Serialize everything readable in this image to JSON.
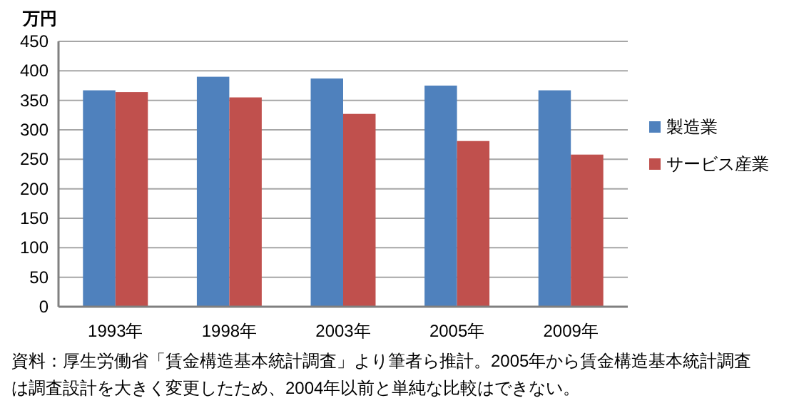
{
  "chart_data": {
    "type": "bar",
    "ylabel": "万円",
    "categories": [
      "1993年",
      "1998年",
      "2003年",
      "2005年",
      "2009年"
    ],
    "series": [
      {
        "name": "製造業",
        "color": "#4f81bd",
        "values": [
          367,
          390,
          387,
          375,
          367
        ]
      },
      {
        "name": "サービス産業",
        "color": "#c0504d",
        "values": [
          364,
          355,
          327,
          281,
          258
        ]
      }
    ],
    "ylim": [
      0,
      450
    ],
    "yticks": [
      0,
      50,
      100,
      150,
      200,
      250,
      300,
      350,
      400,
      450
    ],
    "grid": "y",
    "legend": "right",
    "annotations": [
      "資料：厚生労働省「賃金構造基本統計調査」より筆者ら推計。2005年から賃金構造基本統計調査は調査設計を大きく変更したため、2004年以前と単純な比較はできない。"
    ]
  }
}
